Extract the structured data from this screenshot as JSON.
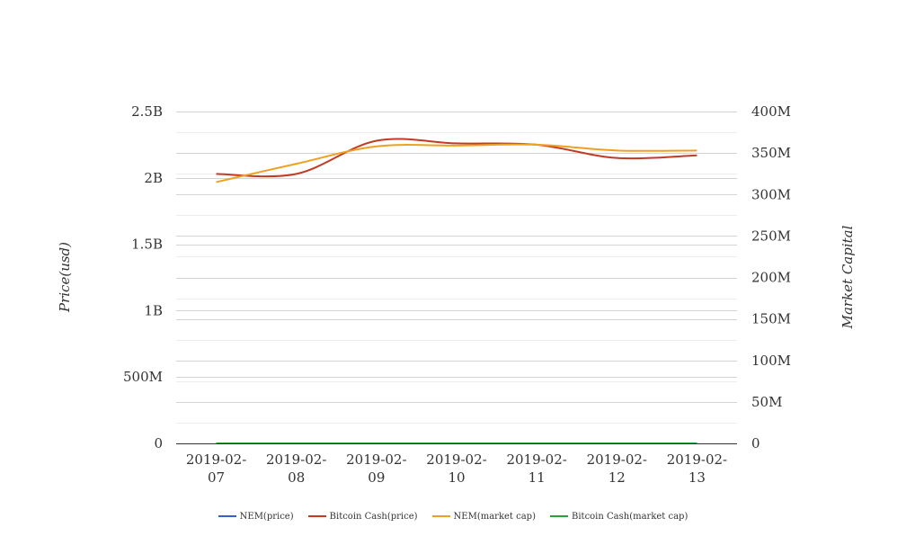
{
  "chart_data": {
    "type": "line",
    "categories": [
      "2019-02-07",
      "2019-02-08",
      "2019-02-09",
      "2019-02-10",
      "2019-02-11",
      "2019-02-12",
      "2019-02-13"
    ],
    "category_lines": [
      [
        "2019-02-",
        "07"
      ],
      [
        "2019-02-",
        "08"
      ],
      [
        "2019-02-",
        "09"
      ],
      [
        "2019-02-",
        "10"
      ],
      [
        "2019-02-",
        "11"
      ],
      [
        "2019-02-",
        "12"
      ],
      [
        "2019-02-",
        "13"
      ]
    ],
    "y_left": {
      "label": "Price(usd)",
      "min": 0,
      "max": 2500000000,
      "ticks": [
        0,
        500000000,
        1000000000,
        1500000000,
        2000000000,
        2500000000
      ],
      "tick_labels": [
        "0",
        "500M",
        "1B",
        "1.5B",
        "2B",
        "2.5B"
      ]
    },
    "y_right": {
      "label": "Market Capital",
      "min": 0,
      "max": 400000000,
      "ticks": [
        0,
        50000000,
        100000000,
        150000000,
        200000000,
        250000000,
        300000000,
        350000000,
        400000000
      ],
      "tick_labels": [
        "0",
        "50M",
        "100M",
        "150M",
        "200M",
        "250M",
        "300M",
        "350M",
        "400M"
      ]
    },
    "series": [
      {
        "name": "NEM(price)",
        "axis": "left",
        "color": "#3a5fcd",
        "values": [
          0.0475,
          0.0465,
          0.047,
          0.0468,
          0.0466,
          0.0459,
          0.0461
        ]
      },
      {
        "name": "Bitcoin Cash(price)",
        "axis": "left",
        "color": "#c23b22",
        "values": [
          2030000000,
          2030000000,
          2280000000,
          2260000000,
          2250000000,
          2150000000,
          2170000000
        ]
      },
      {
        "name": "NEM(market cap)",
        "axis": "right",
        "color": "#f0a020",
        "values": [
          315000000,
          337000000,
          358000000,
          359000000,
          360000000,
          353000000,
          353000000
        ]
      },
      {
        "name": "Bitcoin Cash(market cap)",
        "axis": "right",
        "color": "#2e9e3a",
        "values": [
          120.1,
          120.3,
          133.2,
          132.1,
          131.5,
          125.8,
          127.0
        ]
      }
    ],
    "grid": true,
    "legend_position": "bottom"
  }
}
